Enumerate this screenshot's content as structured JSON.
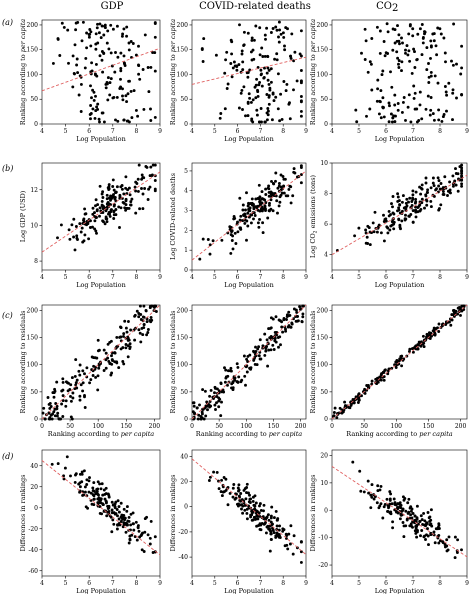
{
  "columns": [
    "GDP",
    "COVID-related deaths",
    "CO",
    "2"
  ],
  "row_labels": [
    "(a)",
    "(b)",
    "(c)",
    "(d)"
  ],
  "chart_data": [
    {
      "type": "scatter",
      "row": "(a)",
      "column": "GDP",
      "xlabel": "Log Population",
      "ylabel": "Ranking according to",
      "ylabel_italic": "per capita",
      "xlim": [
        4,
        9
      ],
      "ylim": [
        0,
        210
      ],
      "xticks": [
        4,
        5,
        6,
        7,
        8,
        9
      ],
      "yticks": [
        0,
        50,
        100,
        150,
        200
      ],
      "trend": {
        "x": [
          4,
          9
        ],
        "y": [
          67,
          153
        ]
      },
      "gen": {
        "mode": "uniform",
        "n": 170,
        "seed": 11,
        "cx": 7,
        "sx": 1.0
      }
    },
    {
      "type": "scatter",
      "row": "(a)",
      "column": "COVID-related deaths",
      "xlabel": "Log Population",
      "ylabel": "Ranking according to",
      "ylabel_italic": "per capita",
      "xlim": [
        4,
        9
      ],
      "ylim": [
        0,
        210
      ],
      "xticks": [
        4,
        5,
        6,
        7,
        8,
        9
      ],
      "yticks": [
        0,
        50,
        100,
        150,
        200
      ],
      "trend": {
        "x": [
          4,
          9
        ],
        "y": [
          80,
          135
        ]
      },
      "gen": {
        "mode": "uniform",
        "n": 170,
        "seed": 23,
        "cx": 7,
        "sx": 1.0
      }
    },
    {
      "type": "scatter",
      "row": "(a)",
      "column": "CO2",
      "xlabel": "Log Population",
      "ylabel": "Ranking according to",
      "ylabel_italic": "per capita",
      "xlim": [
        4,
        9
      ],
      "ylim": [
        0,
        210
      ],
      "xticks": [
        4,
        5,
        6,
        7,
        8,
        9
      ],
      "yticks": [
        0,
        50,
        100,
        150,
        200
      ],
      "trend": null,
      "gen": {
        "mode": "uniform",
        "n": 170,
        "seed": 37,
        "cx": 7,
        "sx": 1.0
      }
    },
    {
      "type": "scatter",
      "row": "(b)",
      "column": "GDP",
      "xlabel": "Log Population",
      "ylabel": "Log GDP (USD)",
      "xlim": [
        4,
        9
      ],
      "ylim": [
        7.5,
        13.5
      ],
      "xticks": [
        4,
        5,
        6,
        7,
        8,
        9
      ],
      "yticks": [
        8,
        10,
        12
      ],
      "trend": {
        "x": [
          4,
          9
        ],
        "y": [
          8.5,
          13
        ]
      },
      "gen": {
        "mode": "linear",
        "n": 190,
        "seed": 41,
        "cx": 7,
        "sx": 1.0,
        "slope": 0.9,
        "icpt": 4.9,
        "noise": 0.55
      }
    },
    {
      "type": "scatter",
      "row": "(b)",
      "column": "COVID-related deaths",
      "xlabel": "Log Population",
      "ylabel": "Log COVID-related deaths",
      "xlim": [
        4,
        9
      ],
      "ylim": [
        0,
        5.4
      ],
      "xticks": [
        4,
        5,
        6,
        7,
        8,
        9
      ],
      "yticks": [
        0,
        1,
        2,
        3,
        4,
        5
      ],
      "trend": {
        "x": [
          4,
          9
        ],
        "y": [
          0.5,
          5
        ]
      },
      "gen": {
        "mode": "linear",
        "n": 180,
        "seed": 53,
        "cx": 7,
        "sx": 1.0,
        "slope": 0.9,
        "icpt": -3.1,
        "noise": 0.5
      }
    },
    {
      "type": "scatter",
      "row": "(b)",
      "column": "CO2",
      "xlabel": "Log Population",
      "ylabel": "Log CO",
      "ylabel_sub": "2",
      "ylabel_rest": " emissions (tons)",
      "xlim": [
        4,
        9
      ],
      "ylim": [
        3,
        10
      ],
      "xticks": [
        4,
        5,
        6,
        7,
        8,
        9
      ],
      "yticks": [
        4,
        6,
        8,
        10
      ],
      "trend": {
        "x": [
          4,
          9
        ],
        "y": [
          4,
          9.2
        ]
      },
      "gen": {
        "mode": "linear",
        "n": 190,
        "seed": 67,
        "cx": 7,
        "sx": 1.0,
        "slope": 1.04,
        "icpt": -0.16,
        "noise": 0.55
      }
    },
    {
      "type": "scatter",
      "row": "(c)",
      "column": "GDP",
      "xlabel": "Ranking according to",
      "xlabel_italic": "per capita",
      "ylabel": "Ranking according to residuals",
      "xlim": [
        0,
        210
      ],
      "ylim": [
        0,
        210
      ],
      "xticks": [
        0,
        50,
        100,
        150,
        200
      ],
      "yticks": [
        0,
        50,
        100,
        150,
        200
      ],
      "trend": {
        "x": [
          0,
          210
        ],
        "y": [
          0,
          210
        ]
      },
      "gen": {
        "mode": "diag",
        "n": 210,
        "seed": 71,
        "noise": 22
      }
    },
    {
      "type": "scatter",
      "row": "(c)",
      "column": "COVID-related deaths",
      "xlabel": "Ranking according to",
      "xlabel_italic": "per capita",
      "ylabel": "Ranking according to residuals",
      "xlim": [
        0,
        210
      ],
      "ylim": [
        0,
        210
      ],
      "xticks": [
        0,
        50,
        100,
        150,
        200
      ],
      "yticks": [
        0,
        50,
        100,
        150,
        200
      ],
      "trend": {
        "x": [
          0,
          210
        ],
        "y": [
          0,
          210
        ]
      },
      "gen": {
        "mode": "diag",
        "n": 210,
        "seed": 83,
        "noise": 14
      }
    },
    {
      "type": "scatter",
      "row": "(c)",
      "column": "CO2",
      "xlabel": "Ranking according to",
      "xlabel_italic": "per capita",
      "ylabel": "Ranking according to residuals",
      "xlim": [
        0,
        210
      ],
      "ylim": [
        0,
        210
      ],
      "xticks": [
        0,
        50,
        100,
        150,
        200
      ],
      "yticks": [
        0,
        50,
        100,
        150,
        200
      ],
      "trend": {
        "x": [
          0,
          210
        ],
        "y": [
          0,
          210
        ]
      },
      "gen": {
        "mode": "diag",
        "n": 210,
        "seed": 97,
        "noise": 5
      }
    },
    {
      "type": "scatter",
      "row": "(d)",
      "column": "GDP",
      "xlabel": "Log Population",
      "ylabel": "Differences in rankings",
      "xlim": [
        4,
        9
      ],
      "ylim": [
        -65,
        55
      ],
      "xticks": [
        4,
        5,
        6,
        7,
        8,
        9
      ],
      "yticks": [
        -60,
        -40,
        -20,
        0,
        20,
        40
      ],
      "trend": {
        "x": [
          4,
          9
        ],
        "y": [
          45,
          -45
        ]
      },
      "gen": {
        "mode": "linear",
        "n": 190,
        "seed": 101,
        "cx": 6.9,
        "sx": 0.9,
        "slope": -18,
        "icpt": 124,
        "noise": 8
      }
    },
    {
      "type": "scatter",
      "row": "(d)",
      "column": "COVID-related deaths",
      "xlabel": "Log Population",
      "ylabel": "Differences in rankings",
      "xlim": [
        4,
        9
      ],
      "ylim": [
        -55,
        45
      ],
      "xticks": [
        4,
        5,
        6,
        7,
        8,
        9
      ],
      "yticks": [
        -40,
        -20,
        0,
        20,
        40
      ],
      "trend": {
        "x": [
          4,
          9
        ],
        "y": [
          38,
          -38
        ]
      },
      "gen": {
        "mode": "linear",
        "n": 190,
        "seed": 113,
        "cx": 6.9,
        "sx": 0.9,
        "slope": -15.2,
        "icpt": 98.8,
        "noise": 6
      }
    },
    {
      "type": "scatter",
      "row": "(d)",
      "column": "CO2",
      "xlabel": "Log Population",
      "ylabel": "Differences in rankings",
      "xlim": [
        4,
        9
      ],
      "ylim": [
        -24,
        22
      ],
      "xticks": [
        4,
        5,
        6,
        7,
        8,
        9
      ],
      "yticks": [
        -20,
        -10,
        0,
        10,
        20
      ],
      "trend": {
        "x": [
          4,
          9
        ],
        "y": [
          16,
          -17
        ]
      },
      "gen": {
        "mode": "linear",
        "n": 180,
        "seed": 127,
        "cx": 6.9,
        "sx": 0.9,
        "slope": -6.6,
        "icpt": 42.4,
        "noise": 3
      }
    }
  ]
}
